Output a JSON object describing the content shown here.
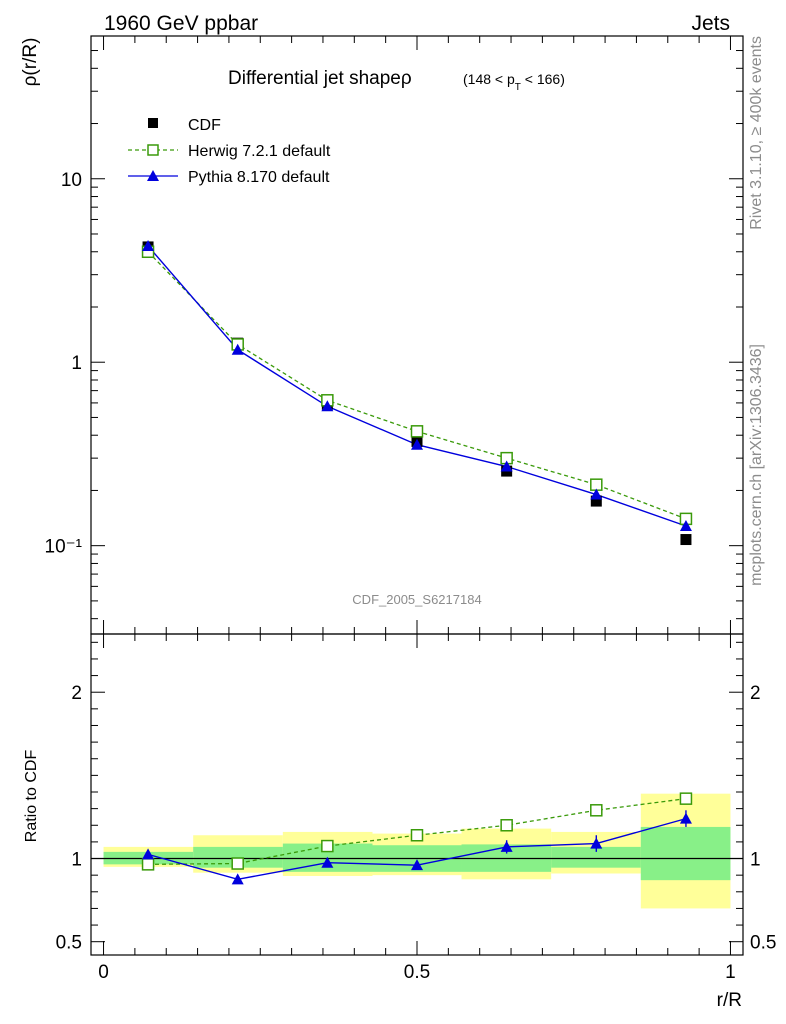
{
  "header": {
    "left": "1960 GeV ppbar",
    "right": "Jets"
  },
  "side_labels": {
    "rivet": "Rivet 3.1.10, ≥ 400k events",
    "mcplots": "mcplots.cern.ch [arXiv:1306.3436]"
  },
  "watermark": "CDF_2005_S6217184",
  "colors": {
    "cdf": "#000000",
    "herwig": "#3a9a0a",
    "pythia": "#0000dd",
    "band_inner": "#88f088",
    "band_outer": "#ffff99"
  },
  "chart_data": [
    {
      "type": "line",
      "title": "Differential jet shapeρ",
      "title_cut": "(148 < p_T < 166)",
      "ylabel": "ρ(r/R)",
      "yscale": "log",
      "ylim": [
        0.033,
        60
      ],
      "yticks": [
        {
          "v": 0.1,
          "label": "10⁻¹"
        },
        {
          "v": 1,
          "label": "1"
        },
        {
          "v": 10,
          "label": "10"
        }
      ],
      "xlim": [
        -0.02,
        1.02
      ],
      "legend_position": "top-left",
      "x": [
        0.071,
        0.214,
        0.357,
        0.5,
        0.643,
        0.786,
        0.929
      ],
      "series": [
        {
          "name": "CDF",
          "marker": "filled-square",
          "values": [
            4.25,
            1.27,
            0.59,
            0.37,
            0.255,
            0.175,
            0.108
          ]
        },
        {
          "name": "Herwig 7.2.1 default",
          "marker": "open-square",
          "line": "dashed",
          "values": [
            4.0,
            1.25,
            0.62,
            0.42,
            0.3,
            0.215,
            0.14
          ]
        },
        {
          "name": "Pythia 8.170 default",
          "marker": "filled-triangle",
          "line": "solid",
          "values": [
            4.3,
            1.17,
            0.575,
            0.355,
            0.27,
            0.19,
            0.128
          ]
        }
      ]
    },
    {
      "type": "line",
      "ylabel": "Ratio to CDF",
      "xlabel": "r/R",
      "ylim": [
        0.42,
        2.35
      ],
      "yticks": [
        {
          "v": 0.5,
          "label": "0.5"
        },
        {
          "v": 1,
          "label": "1"
        },
        {
          "v": 2,
          "label": "2"
        }
      ],
      "xlim": [
        -0.02,
        1.02
      ],
      "xticks": [
        {
          "v": 0,
          "label": "0"
        },
        {
          "v": 0.5,
          "label": "0.5"
        },
        {
          "v": 1,
          "label": "1"
        }
      ],
      "bin_edges": [
        0,
        0.143,
        0.286,
        0.429,
        0.571,
        0.714,
        0.857,
        1.0
      ],
      "band_inner": [
        [
          0.965,
          1.04
        ],
        [
          0.945,
          1.07
        ],
        [
          0.92,
          1.09
        ],
        [
          0.92,
          1.08
        ],
        [
          0.92,
          1.085
        ],
        [
          0.945,
          1.07
        ],
        [
          0.87,
          1.19
        ]
      ],
      "band_outer": [
        [
          0.95,
          1.07
        ],
        [
          0.915,
          1.14
        ],
        [
          0.895,
          1.16
        ],
        [
          0.9,
          1.15
        ],
        [
          0.875,
          1.18
        ],
        [
          0.91,
          1.16
        ],
        [
          0.7,
          1.39
        ]
      ],
      "x": [
        0.071,
        0.214,
        0.357,
        0.5,
        0.643,
        0.786,
        0.929
      ],
      "series": [
        {
          "name": "Herwig 7.2.1 default",
          "values": [
            0.965,
            0.97,
            1.075,
            1.14,
            1.2,
            1.29,
            1.36
          ]
        },
        {
          "name": "Pythia 8.170 default",
          "values": [
            1.025,
            0.875,
            0.975,
            0.96,
            1.07,
            1.09,
            1.24
          ],
          "errors": [
            0.01,
            0.01,
            0.02,
            0.02,
            0.04,
            0.05,
            0.05
          ]
        }
      ]
    }
  ]
}
